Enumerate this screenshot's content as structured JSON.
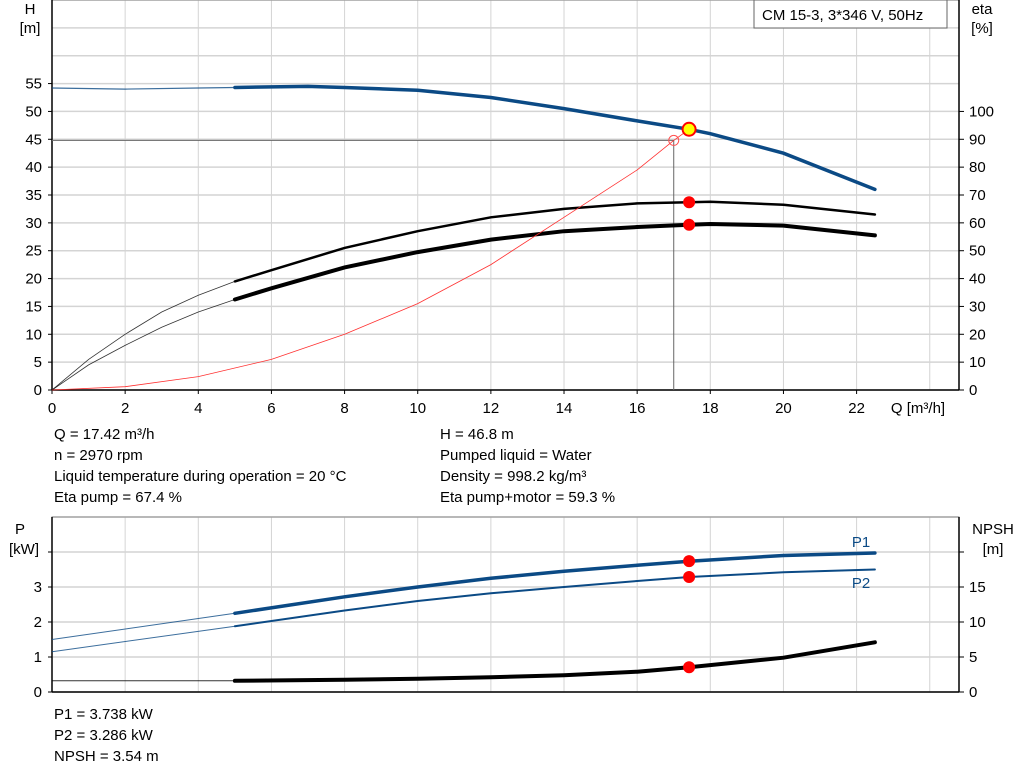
{
  "chart_data": [
    {
      "type": "line",
      "title": "CM 15-3, 3*346 V, 50Hz",
      "xlabel": "Q [m³/h]",
      "ylabel": "H\n[m]",
      "ylabel_lines": [
        "H",
        "[m]"
      ],
      "y2label_lines": [
        "eta",
        "[%]"
      ],
      "xlim": [
        0,
        24.8
      ],
      "ylim": [
        0,
        70
      ],
      "y2lim": [
        0,
        140
      ],
      "grid": true,
      "x_ticks": [
        0,
        2,
        4,
        6,
        8,
        10,
        12,
        14,
        16,
        18,
        20,
        22
      ],
      "y_ticks": [
        0,
        5,
        10,
        15,
        20,
        25,
        30,
        35,
        40,
        45,
        50,
        55
      ],
      "y2_ticks": [
        0,
        10,
        20,
        30,
        40,
        50,
        60,
        70,
        80,
        90,
        100
      ],
      "series": [
        {
          "key": "H",
          "axis": "left",
          "color": "#0b4a85",
          "x": [
            0,
            2,
            4,
            5,
            6,
            7,
            8,
            10,
            12,
            14,
            16,
            17.42,
            18,
            20,
            22.5
          ],
          "y": [
            54.2,
            54.0,
            54.2,
            54.3,
            54.4,
            54.5,
            54.3,
            53.8,
            52.5,
            50.5,
            48.3,
            46.8,
            46.0,
            42.5,
            36.0
          ]
        },
        {
          "key": "eta_pump",
          "axis": "right",
          "color": "#000000",
          "x": [
            0,
            1,
            2,
            3,
            4,
            5,
            6,
            8,
            10,
            12,
            14,
            16,
            17.42,
            18,
            20,
            22.5
          ],
          "y": [
            0,
            11,
            20,
            28,
            34,
            39,
            43,
            51,
            57,
            62,
            65,
            67,
            67.4,
            67.6,
            66.5,
            63
          ]
        },
        {
          "key": "eta_pump_motor",
          "axis": "right",
          "color": "#000000",
          "x": [
            0,
            1,
            2,
            3,
            4,
            5,
            6,
            8,
            10,
            12,
            14,
            16,
            17.42,
            18,
            20,
            22.5
          ],
          "y": [
            0,
            9,
            16,
            22.5,
            28,
            32.5,
            36.5,
            44,
            49.5,
            54,
            57,
            58.5,
            59.3,
            59.6,
            59,
            55.5
          ]
        },
        {
          "key": "system",
          "axis": "left",
          "color": "#ff3030",
          "x": [
            0,
            2,
            4,
            6,
            8,
            10,
            12,
            14,
            16,
            17,
            17.42
          ],
          "y": [
            0,
            0.6,
            2.4,
            5.5,
            10,
            15.5,
            22.5,
            31,
            39.5,
            44.8,
            46.8
          ]
        }
      ],
      "duty_point": {
        "q": 17.0,
        "h": 44.8
      },
      "operating_point": {
        "q": 17.42,
        "h": 46.8,
        "eta_pump": 67.4,
        "eta_pump_motor": 59.3
      }
    },
    {
      "type": "line",
      "ylabel_lines": [
        "P",
        "[kW]"
      ],
      "y2label_lines": [
        "NPSH",
        "[m]"
      ],
      "xlim": [
        0,
        24.8
      ],
      "ylim": [
        0,
        5
      ],
      "y2lim": [
        0,
        25
      ],
      "grid": true,
      "y_ticks": [
        0,
        1,
        2,
        3
      ],
      "y2_ticks": [
        0,
        5,
        10,
        15
      ],
      "series": [
        {
          "name": "P1",
          "key": "P1",
          "axis": "left",
          "color": "#0b4a85",
          "x": [
            0,
            5,
            8,
            10,
            12,
            14,
            16,
            17.42,
            20,
            22.5
          ],
          "y": [
            1.5,
            2.25,
            2.72,
            3.0,
            3.25,
            3.45,
            3.62,
            3.738,
            3.9,
            3.97
          ]
        },
        {
          "name": "P2",
          "key": "P2",
          "axis": "left",
          "color": "#0b4a85",
          "x": [
            0,
            5,
            8,
            10,
            12,
            14,
            16,
            17.42,
            20,
            22.5
          ],
          "y": [
            1.15,
            1.88,
            2.33,
            2.6,
            2.82,
            3.0,
            3.17,
            3.286,
            3.42,
            3.5
          ]
        },
        {
          "key": "NPSH",
          "axis": "right",
          "color": "#000000",
          "x": [
            0,
            5,
            8,
            10,
            12,
            14,
            16,
            17.42,
            20,
            22.5
          ],
          "y": [
            1.6,
            1.6,
            1.75,
            1.9,
            2.1,
            2.4,
            2.9,
            3.54,
            4.9,
            7.1
          ]
        }
      ],
      "operating_point": {
        "q": 17.42,
        "P1": 3.738,
        "P2": 3.286,
        "NPSH": 3.54
      }
    }
  ],
  "info_top_left": [
    "Q = 17.42 m³/h",
    "n = 2970 rpm",
    "Liquid temperature during operation = 20 °C",
    "Eta pump = 67.4 %"
  ],
  "info_top_right": [
    "H = 46.8 m",
    "Pumped liquid = Water",
    "Density = 998.2 kg/m³",
    "Eta pump+motor = 59.3 %"
  ],
  "info_bottom": [
    "P1 = 3.738 kW",
    "P2 = 3.286 kW",
    "NPSH = 3.54 m"
  ]
}
